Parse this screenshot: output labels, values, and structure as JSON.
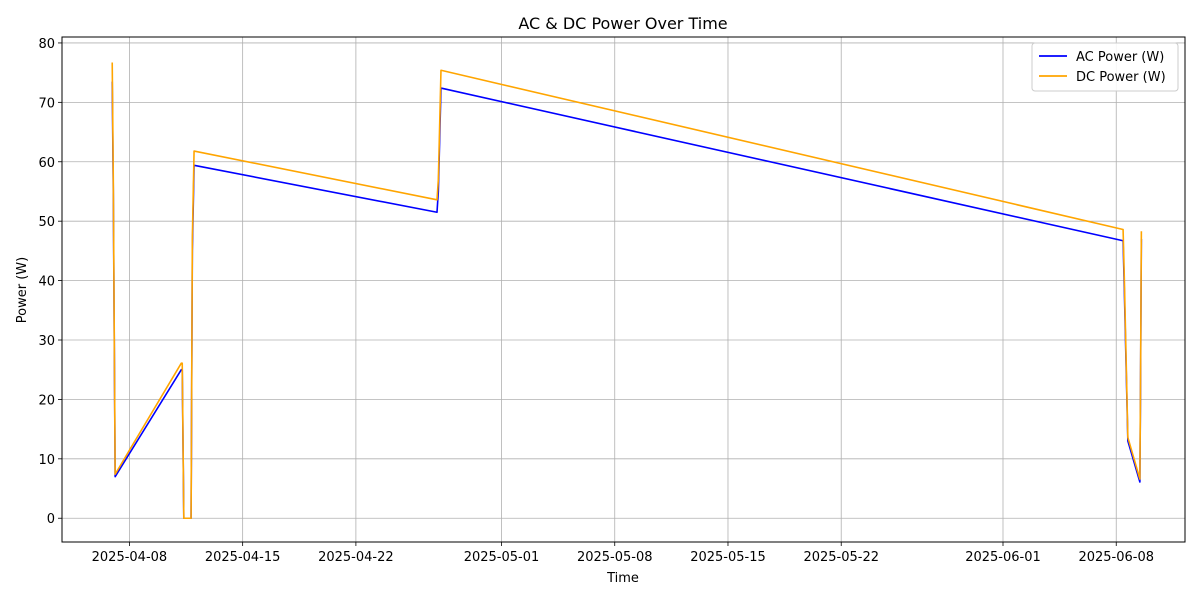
{
  "chart_data": {
    "type": "line",
    "title": "AC & DC Power Over Time",
    "xlabel": "Time",
    "ylabel": "Power (W)",
    "xlim": [
      "2025-04-03T20:00",
      "2025-06-12T06:00"
    ],
    "ylim": [
      -4,
      81
    ],
    "x_ticks": [
      "2025-04-08",
      "2025-04-15",
      "2025-04-22",
      "2025-05-01",
      "2025-05-08",
      "2025-05-15",
      "2025-05-22",
      "2025-06-01",
      "2025-06-08"
    ],
    "y_ticks": [
      0,
      10,
      20,
      30,
      40,
      50,
      60,
      70,
      80
    ],
    "grid": true,
    "legend_position": "upper right",
    "series": [
      {
        "name": "AC Power (W)",
        "color": "#0000ff",
        "x": [
          "2025-04-06T22:30",
          "2025-04-07T00:06",
          "2025-04-07T02:51",
          "2025-04-11T05:00",
          "2025-04-11T06:23",
          "2025-04-11T08:42",
          "2025-04-11T19:30",
          "2025-04-11T21:23",
          "2025-04-11T23:56",
          "2025-04-27T00:19",
          "2025-04-27T02:19",
          "2025-04-27T06:14",
          "2025-06-08T10:09",
          "2025-06-08T12:05",
          "2025-06-08T17:14",
          "2025-06-09T11:04",
          "2025-06-09T11:55",
          "2025-06-09T13:16"
        ],
        "values": [
          73.5,
          55.0,
          7.0,
          25.0,
          25.0,
          0.0,
          0.0,
          45.0,
          59.4,
          51.5,
          55.0,
          72.4,
          46.7,
          38.0,
          13.0,
          6.1,
          20.0,
          47.0
        ]
      },
      {
        "name": "DC Power (W)",
        "color": "#ffa500",
        "x": [
          "2025-04-06T22:30",
          "2025-04-07T00:06",
          "2025-04-07T02:51",
          "2025-04-11T05:00",
          "2025-04-11T06:23",
          "2025-04-11T08:42",
          "2025-04-11T19:30",
          "2025-04-11T21:23",
          "2025-04-11T23:56",
          "2025-04-27T00:19",
          "2025-04-27T02:19",
          "2025-04-27T06:14",
          "2025-06-08T10:09",
          "2025-06-08T12:05",
          "2025-06-08T17:14",
          "2025-06-09T11:04",
          "2025-06-09T11:55",
          "2025-06-09T13:16"
        ],
        "values": [
          76.7,
          57.0,
          7.4,
          26.1,
          26.1,
          0.0,
          0.0,
          47.0,
          61.8,
          53.6,
          57.0,
          75.4,
          48.6,
          40.0,
          13.6,
          6.6,
          21.0,
          48.3
        ]
      }
    ]
  }
}
